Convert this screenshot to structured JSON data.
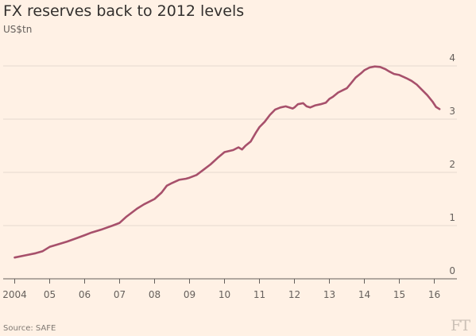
{
  "header": {
    "title": "FX reserves back to 2012 levels",
    "subtitle": "US$tn"
  },
  "footer": {
    "source": "Source: SAFE",
    "logo": "FT"
  },
  "colors": {
    "background": "#fff1e5",
    "series": "#a7506b",
    "grid": "#e6d9ce",
    "text": "#66605c"
  },
  "chart_data": {
    "type": "line",
    "title": "FX reserves back to 2012 levels",
    "ylabel": "US$tn",
    "xlabel": "",
    "xlim": [
      2003.9,
      2016.6
    ],
    "ylim": [
      0,
      4.3
    ],
    "x_ticks": [
      {
        "value": 2004,
        "label": "2004"
      },
      {
        "value": 2005,
        "label": "05"
      },
      {
        "value": 2006,
        "label": "06"
      },
      {
        "value": 2007,
        "label": "07"
      },
      {
        "value": 2008,
        "label": "08"
      },
      {
        "value": 2009,
        "label": "09"
      },
      {
        "value": 2010,
        "label": "10"
      },
      {
        "value": 2011,
        "label": "11"
      },
      {
        "value": 2012,
        "label": "12"
      },
      {
        "value": 2013,
        "label": "13"
      },
      {
        "value": 2014,
        "label": "14"
      },
      {
        "value": 2015,
        "label": "15"
      },
      {
        "value": 2016,
        "label": "16"
      }
    ],
    "y_ticks": [
      {
        "value": 0,
        "label": "0"
      },
      {
        "value": 1,
        "label": "1"
      },
      {
        "value": 2,
        "label": "2"
      },
      {
        "value": 3,
        "label": "3"
      },
      {
        "value": 4,
        "label": "4"
      }
    ],
    "grid": true,
    "series": [
      {
        "x": [
          2004.0,
          2004.3,
          2004.6,
          2004.8,
          2005.0,
          2005.2,
          2005.5,
          2005.8,
          2006.0,
          2006.2,
          2006.5,
          2006.8,
          2007.0,
          2007.2,
          2007.5,
          2007.7,
          2008.0,
          2008.2,
          2008.35,
          2008.5,
          2008.7,
          2008.9,
          2009.0,
          2009.2,
          2009.4,
          2009.6,
          2009.8,
          2010.0,
          2010.25,
          2010.4,
          2010.5,
          2010.6,
          2010.75,
          2010.9,
          2011.0,
          2011.15,
          2011.3,
          2011.45,
          2011.6,
          2011.75,
          2011.85,
          2011.95,
          2012.0,
          2012.1,
          2012.25,
          2012.35,
          2012.45,
          2012.6,
          2012.75,
          2012.9,
          2013.0,
          2013.1,
          2013.25,
          2013.4,
          2013.5,
          2013.6,
          2013.75,
          2013.9,
          2014.0,
          2014.15,
          2014.3,
          2014.45,
          2014.6,
          2014.7,
          2014.85,
          2015.0,
          2015.1,
          2015.2,
          2015.35,
          2015.5,
          2015.65,
          2015.8,
          2015.95,
          2016.05,
          2016.15
        ],
        "values": [
          0.4,
          0.44,
          0.48,
          0.52,
          0.6,
          0.64,
          0.7,
          0.77,
          0.82,
          0.87,
          0.93,
          1.0,
          1.05,
          1.17,
          1.32,
          1.4,
          1.5,
          1.62,
          1.75,
          1.8,
          1.86,
          1.88,
          1.9,
          1.95,
          2.05,
          2.15,
          2.27,
          2.38,
          2.42,
          2.47,
          2.43,
          2.5,
          2.58,
          2.75,
          2.85,
          2.95,
          3.08,
          3.18,
          3.22,
          3.24,
          3.22,
          3.2,
          3.22,
          3.28,
          3.3,
          3.24,
          3.22,
          3.26,
          3.28,
          3.31,
          3.38,
          3.42,
          3.5,
          3.55,
          3.58,
          3.66,
          3.78,
          3.86,
          3.92,
          3.97,
          3.99,
          3.98,
          3.94,
          3.9,
          3.85,
          3.83,
          3.8,
          3.77,
          3.72,
          3.65,
          3.55,
          3.45,
          3.33,
          3.23,
          3.19
        ]
      }
    ]
  }
}
